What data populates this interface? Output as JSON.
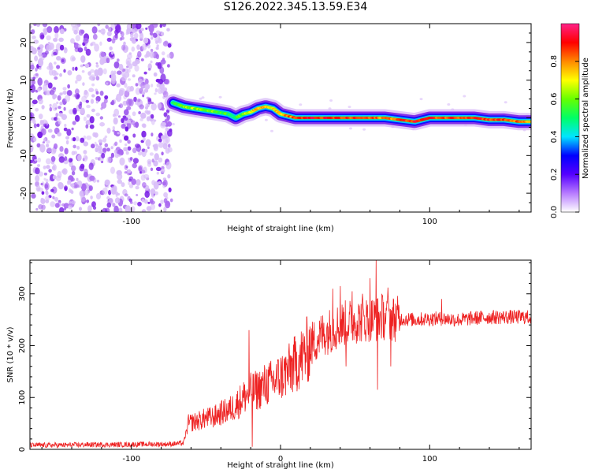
{
  "title": "S126.2022.345.13.59.E34",
  "chart_data": [
    {
      "type": "heatmap",
      "subtitle": "",
      "xlabel": "Height of straight line (km)",
      "ylabel": "Frequency (Hz)",
      "xlim": [
        -168,
        168
      ],
      "ylim": [
        -25,
        25
      ],
      "xticks": [
        -100,
        0,
        100
      ],
      "xtick_labels": [
        "-100",
        "",
        "100"
      ],
      "yticks": [
        -20,
        -10,
        0,
        10,
        20
      ],
      "ytick_labels": [
        "-20",
        "-10",
        "0",
        "10",
        "20"
      ],
      "noise_region_x": [
        -168,
        -73
      ],
      "ridge": {
        "x": [
          -72,
          -65,
          -58,
          -50,
          -42,
          -35,
          -30,
          -25,
          -20,
          -15,
          -10,
          -5,
          0,
          10,
          20,
          30,
          40,
          50,
          60,
          70,
          80,
          90,
          100,
          110,
          120,
          130,
          140,
          150,
          160,
          168
        ],
        "freq": [
          4,
          3,
          2.5,
          2,
          1.5,
          1,
          0,
          1,
          1.5,
          2.5,
          3,
          2.5,
          1,
          0,
          0,
          0,
          0,
          0,
          0,
          0,
          -0.5,
          -1,
          0,
          0,
          0,
          0,
          -0.5,
          -0.5,
          -1,
          -1
        ],
        "amplitude": [
          0.55,
          0.6,
          0.62,
          0.6,
          0.58,
          0.55,
          0.5,
          0.6,
          0.7,
          0.75,
          0.8,
          0.7,
          0.75,
          0.85,
          0.9,
          0.88,
          0.85,
          0.85,
          0.82,
          0.8,
          0.85,
          0.9,
          0.88,
          0.85,
          0.87,
          0.9,
          0.88,
          0.85,
          0.8,
          0.75
        ]
      },
      "colorbar": {
        "label": "Normalized spectral amplitude",
        "range": [
          0,
          1
        ],
        "ticks": [
          0.0,
          0.2,
          0.4,
          0.6,
          0.8
        ],
        "tick_labels": [
          "0.0",
          "0.2",
          "0.4",
          "0.6",
          "0.8"
        ],
        "colors": [
          "#ffffff",
          "#b77bff",
          "#5500ff",
          "#0000ff",
          "#00e5ff",
          "#00ff66",
          "#66ff00",
          "#ffff00",
          "#ff8800",
          "#ff0000",
          "#ff2288"
        ]
      }
    },
    {
      "type": "line",
      "xlabel": "Height of straight line (km)",
      "ylabel": "SNR (10 * v/v)",
      "xlim": [
        -168,
        168
      ],
      "ylim": [
        0,
        365
      ],
      "xticks": [
        -100,
        0,
        100
      ],
      "xtick_labels": [
        "-100",
        "0",
        "100"
      ],
      "yticks": [
        0,
        100,
        200,
        300
      ],
      "ytick_labels": [
        "0",
        "100",
        "200",
        "300"
      ],
      "color": "#ee2222",
      "x": [
        -168,
        -150,
        -130,
        -110,
        -90,
        -75,
        -65,
        -62,
        -55,
        -50,
        -45,
        -40,
        -35,
        -30,
        -25,
        -20,
        -15,
        -10,
        -5,
        0,
        5,
        10,
        15,
        20,
        25,
        30,
        35,
        40,
        45,
        50,
        55,
        60,
        65,
        70,
        75,
        80,
        90,
        100,
        110,
        120,
        130,
        140,
        150,
        160,
        168
      ],
      "y": [
        8,
        8,
        9,
        9,
        10,
        10,
        12,
        50,
        55,
        60,
        62,
        70,
        75,
        85,
        100,
        110,
        115,
        125,
        130,
        140,
        150,
        165,
        180,
        200,
        215,
        225,
        232,
        240,
        245,
        248,
        250,
        252,
        252,
        255,
        252,
        252,
        250,
        252,
        252,
        250,
        253,
        255,
        255,
        255,
        255
      ],
      "spikes": [
        {
          "x": -21,
          "y": 230
        },
        {
          "x": -19,
          "y": 5
        },
        {
          "x": 35,
          "y": 310
        },
        {
          "x": 40,
          "y": 315
        },
        {
          "x": 48,
          "y": 305
        },
        {
          "x": 55,
          "y": 300
        },
        {
          "x": 60,
          "y": 330
        },
        {
          "x": 64,
          "y": 365
        },
        {
          "x": 65,
          "y": 115
        },
        {
          "x": 68,
          "y": 300
        },
        {
          "x": 72,
          "y": 312
        },
        {
          "x": 74,
          "y": 160
        },
        {
          "x": 44,
          "y": 160
        },
        {
          "x": 108,
          "y": 290
        }
      ]
    }
  ]
}
